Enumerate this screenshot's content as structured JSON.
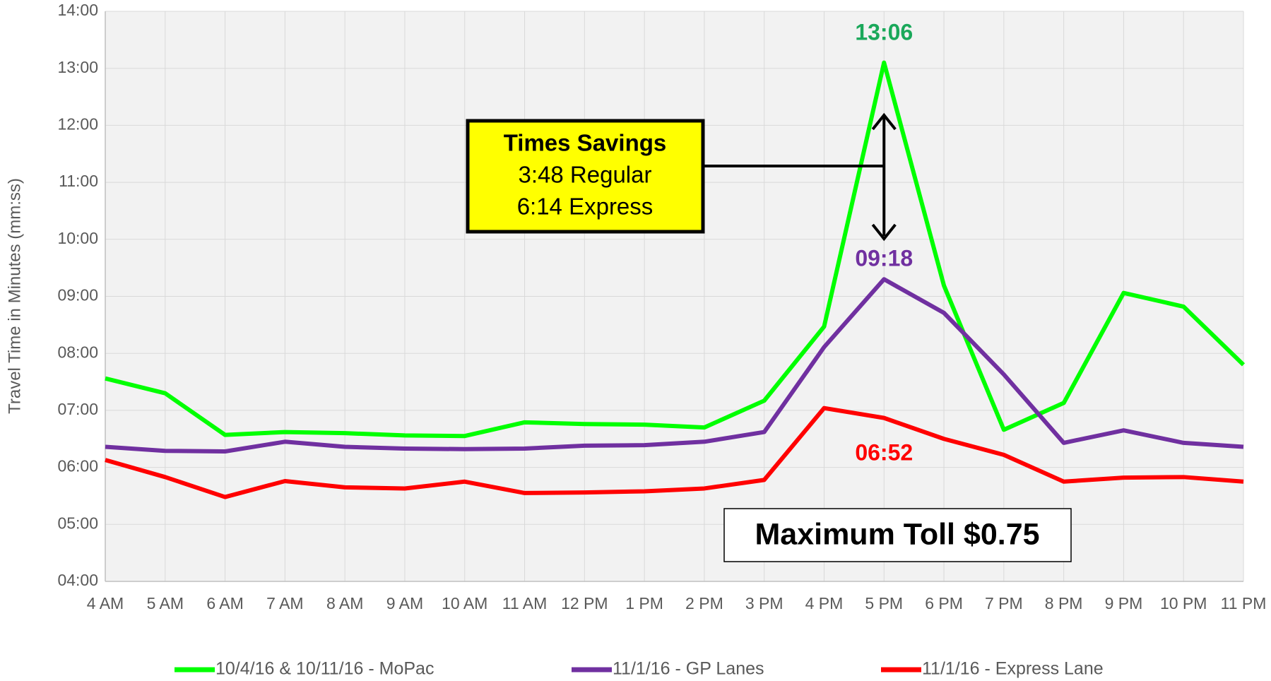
{
  "chart_data": {
    "type": "line",
    "y_label": "Travel Time in Minutes (mm:ss)",
    "categories": [
      "4 AM",
      "5 AM",
      "6 AM",
      "7 AM",
      "8 AM",
      "9 AM",
      "10 AM",
      "11 AM",
      "12 PM",
      "1 PM",
      "2 PM",
      "3 PM",
      "4 PM",
      "5 PM",
      "6 PM",
      "7 PM",
      "8 PM",
      "9 PM",
      "10 PM",
      "11 PM"
    ],
    "series": [
      {
        "name": "10/4/16 & 10/11/16 - MoPac",
        "color": "#00ff00",
        "values": [
          7.56,
          7.3,
          6.57,
          6.62,
          6.6,
          6.56,
          6.55,
          6.79,
          6.76,
          6.75,
          6.7,
          7.17,
          8.47,
          13.1,
          9.19,
          6.66,
          7.13,
          9.06,
          8.82,
          7.8
        ]
      },
      {
        "name": "11/1/16 - GP Lanes",
        "color": "#7030a0",
        "values": [
          6.36,
          6.29,
          6.28,
          6.45,
          6.36,
          6.33,
          6.32,
          6.33,
          6.38,
          6.39,
          6.45,
          6.62,
          8.11,
          9.3,
          8.71,
          7.63,
          6.43,
          6.65,
          6.43,
          6.36
        ]
      },
      {
        "name": "11/1/16 - Express Lane",
        "color": "#ff0000",
        "values": [
          6.13,
          5.83,
          5.48,
          5.76,
          5.65,
          5.63,
          5.75,
          5.55,
          5.56,
          5.58,
          5.63,
          5.78,
          7.04,
          6.867,
          6.5,
          6.22,
          5.75,
          5.82,
          5.83,
          5.75
        ]
      }
    ],
    "ylim": [
      4,
      14
    ],
    "yticks": [
      {
        "value": 4,
        "label": "04:00"
      },
      {
        "value": 5,
        "label": "05:00"
      },
      {
        "value": 6,
        "label": "06:00"
      },
      {
        "value": 7,
        "label": "07:00"
      },
      {
        "value": 8,
        "label": "08:00"
      },
      {
        "value": 9,
        "label": "09:00"
      },
      {
        "value": 10,
        "label": "10:00"
      },
      {
        "value": 11,
        "label": "11:00"
      },
      {
        "value": 12,
        "label": "12:00"
      },
      {
        "value": 13,
        "label": "13:00"
      },
      {
        "value": 14,
        "label": "14:00"
      }
    ],
    "grid": true,
    "peak_labels": [
      "13:06",
      "09:18",
      "06:52"
    ],
    "savings_box": [
      "Times Savings",
      "3:48 Regular",
      "6:14 Express"
    ],
    "toll_box": "Maximum Toll $0.75"
  }
}
